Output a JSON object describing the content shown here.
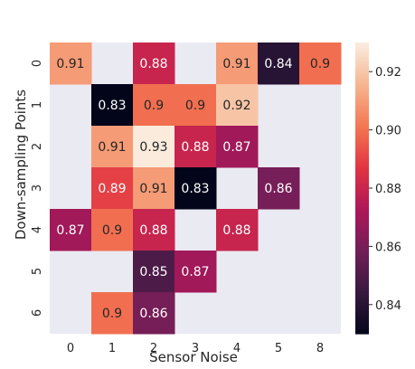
{
  "chart_data": {
    "type": "heatmap",
    "xlabel": "Sensor Noise",
    "ylabel": "Down-sampling Points",
    "x_categories": [
      "0",
      "1",
      "2",
      "3",
      "4",
      "5",
      "8"
    ],
    "y_categories": [
      "0",
      "1",
      "2",
      "3",
      "4",
      "5",
      "6"
    ],
    "values": [
      [
        0.91,
        null,
        0.88,
        null,
        0.91,
        0.84,
        0.9
      ],
      [
        null,
        0.83,
        0.9,
        0.9,
        0.92,
        null,
        null
      ],
      [
        null,
        0.91,
        0.93,
        0.88,
        0.87,
        null,
        null
      ],
      [
        null,
        0.89,
        0.91,
        0.83,
        null,
        0.86,
        null
      ],
      [
        0.87,
        0.9,
        0.88,
        null,
        0.88,
        null,
        null
      ],
      [
        null,
        null,
        0.85,
        0.87,
        null,
        null,
        null
      ],
      [
        null,
        0.9,
        0.86,
        null,
        null,
        null,
        null
      ]
    ],
    "value_labels": [
      [
        "0.91",
        null,
        "0.88",
        null,
        "0.91",
        "0.84",
        "0.9"
      ],
      [
        null,
        "0.83",
        "0.9",
        "0.9",
        "0.92",
        null,
        null
      ],
      [
        null,
        "0.91",
        "0.93",
        "0.88",
        "0.87",
        null,
        null
      ],
      [
        null,
        "0.89",
        "0.91",
        "0.83",
        null,
        "0.86",
        null
      ],
      [
        "0.87",
        "0.9",
        "0.88",
        null,
        "0.88",
        null,
        null
      ],
      [
        null,
        null,
        "0.85",
        "0.87",
        null,
        null,
        null
      ],
      [
        null,
        "0.9",
        "0.86",
        null,
        null,
        null,
        null
      ]
    ],
    "colorbar": {
      "min": 0.83,
      "max": 0.93,
      "ticks": [
        0.84,
        0.86,
        0.88,
        0.9,
        0.92
      ],
      "tick_labels": [
        "0.84",
        "0.86",
        "0.88",
        "0.90",
        "0.92"
      ],
      "colormap": "rocket"
    },
    "missing_color": "#eaeaf2",
    "colormap_stops": [
      "#03051a",
      "#36193e",
      "#701f57",
      "#ad1759",
      "#e13342",
      "#f37651",
      "#f6b48f",
      "#faebdd"
    ]
  }
}
